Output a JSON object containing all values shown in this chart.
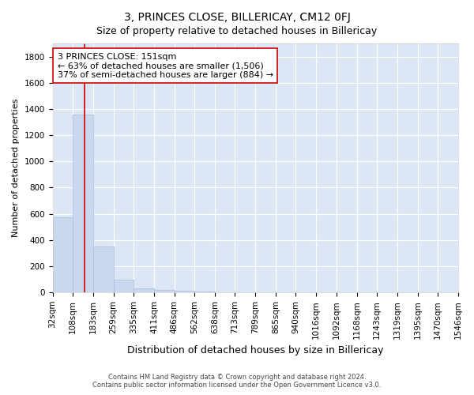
{
  "title": "3, PRINCES CLOSE, BILLERICAY, CM12 0FJ",
  "subtitle": "Size of property relative to detached houses in Billericay",
  "xlabel": "Distribution of detached houses by size in Billericay",
  "ylabel": "Number of detached properties",
  "bin_edges": [
    32,
    108,
    183,
    259,
    335,
    411,
    486,
    562,
    638,
    713,
    789,
    865,
    940,
    1016,
    1092,
    1168,
    1243,
    1319,
    1395,
    1470,
    1546
  ],
  "bar_heights": [
    575,
    1355,
    350,
    95,
    30,
    20,
    15,
    5,
    0,
    0,
    0,
    0,
    0,
    0,
    0,
    0,
    0,
    0,
    0,
    0
  ],
  "bar_color": "#c8d8ee",
  "bar_edgecolor": "#aabcd8",
  "bar_linewidth": 0.5,
  "vline_x": 151,
  "vline_color": "#cc0000",
  "vline_linewidth": 1.2,
  "annotation_text": "3 PRINCES CLOSE: 151sqm\n← 63% of detached houses are smaller (1,506)\n37% of semi-detached houses are larger (884) →",
  "ylim": [
    0,
    1900
  ],
  "yticks": [
    0,
    200,
    400,
    600,
    800,
    1000,
    1200,
    1400,
    1600,
    1800
  ],
  "fig_bg_color": "#ffffff",
  "plot_bg_color": "#dce6f5",
  "grid_color": "#ffffff",
  "title_fontsize": 10,
  "subtitle_fontsize": 9,
  "xlabel_fontsize": 9,
  "ylabel_fontsize": 8,
  "tick_fontsize": 7.5,
  "annotation_fontsize": 8,
  "footer_text": "Contains HM Land Registry data © Crown copyright and database right 2024.\nContains public sector information licensed under the Open Government Licence v3.0."
}
